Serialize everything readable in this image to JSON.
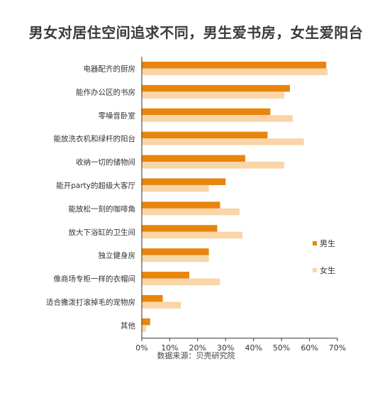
{
  "chart_data": {
    "type": "bar",
    "orientation": "horizontal",
    "title": "男女对居住空间追求不同，男生爱书房，女生爱阳台",
    "source": "数据来源：贝壳研究院",
    "categories": [
      "电器配齐的厨房",
      "能作办公区的书房",
      "零噪音卧室",
      "能放洗衣机和绿杆的阳台",
      "收纳一切的储物间",
      "能开party的超级大客厅",
      "能放松一刻的咖啡角",
      "放大下浴缸的卫生间",
      "独立健身房",
      "像商场专柜一样的衣帽间",
      "适合撒泼打滚掉毛的宠物房",
      "其他"
    ],
    "series": [
      {
        "name": "男生",
        "color": "#e8850c",
        "values": [
          66,
          53,
          46,
          45,
          37,
          30,
          28,
          27,
          24,
          17,
          7.5,
          3
        ]
      },
      {
        "name": "女生",
        "color": "#f9d5a8",
        "values": [
          66.5,
          51,
          54,
          58,
          51,
          24,
          35,
          36,
          24,
          28,
          14,
          1.5
        ]
      }
    ],
    "xlim": [
      0,
      70
    ],
    "xticks": [
      "0%",
      "10%",
      "20%",
      "30%",
      "40%",
      "50%",
      "60%",
      "70%"
    ],
    "legend": "right"
  }
}
